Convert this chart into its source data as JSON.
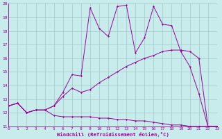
{
  "bg_color": "#c8ecec",
  "line_color": "#990099",
  "grid_color": "#a0c8c8",
  "xlabel": "Windchill (Refroidissement éolien,°C)",
  "xlim": [
    0,
    23
  ],
  "ylim": [
    11,
    20
  ],
  "xticks": [
    0,
    1,
    2,
    3,
    4,
    5,
    6,
    7,
    8,
    9,
    10,
    11,
    12,
    13,
    14,
    15,
    16,
    17,
    18,
    19,
    20,
    21,
    22,
    23
  ],
  "yticks": [
    11,
    12,
    13,
    14,
    15,
    16,
    17,
    18,
    19,
    20
  ],
  "series": [
    {
      "x": [
        0,
        1,
        2,
        3,
        4,
        5,
        6,
        7,
        8,
        9,
        10,
        11,
        12,
        13,
        14,
        15,
        16,
        17,
        18,
        19,
        20,
        21,
        22,
        23
      ],
      "y": [
        12.5,
        12.7,
        12.0,
        12.2,
        12.2,
        11.8,
        11.7,
        11.7,
        11.7,
        11.7,
        11.6,
        11.6,
        11.5,
        11.5,
        11.4,
        11.4,
        11.3,
        11.2,
        11.1,
        11.1,
        11.0,
        11.0,
        11.0,
        11.0
      ]
    },
    {
      "x": [
        0,
        1,
        2,
        3,
        4,
        5,
        6,
        7,
        8,
        9,
        10,
        11,
        12,
        13,
        14,
        15,
        16,
        17,
        18,
        19,
        20,
        21,
        22,
        23
      ],
      "y": [
        12.5,
        12.7,
        12.0,
        12.2,
        12.2,
        12.5,
        13.2,
        13.8,
        13.5,
        13.7,
        14.2,
        14.6,
        15.0,
        15.4,
        15.7,
        16.0,
        16.2,
        16.5,
        16.6,
        16.6,
        16.5,
        16.0,
        11.0,
        11.0
      ]
    },
    {
      "x": [
        0,
        1,
        2,
        3,
        4,
        5,
        6,
        7,
        8,
        9,
        10,
        11,
        12,
        13,
        14,
        15,
        16,
        17,
        18,
        19,
        20,
        21,
        22,
        23
      ],
      "y": [
        12.5,
        12.7,
        12.0,
        12.2,
        12.2,
        12.5,
        13.5,
        14.8,
        14.7,
        19.7,
        18.2,
        17.6,
        19.8,
        19.9,
        16.4,
        17.5,
        19.8,
        18.5,
        18.4,
        16.5,
        15.4,
        13.4,
        11.0,
        11.0
      ]
    }
  ]
}
